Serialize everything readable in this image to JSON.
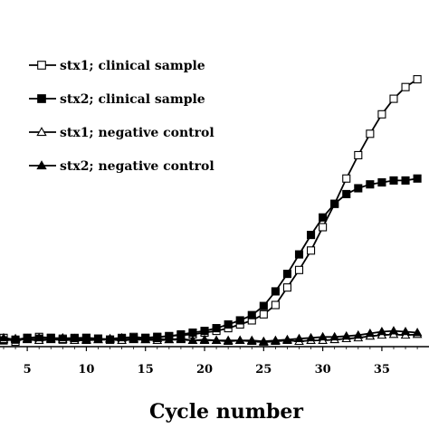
{
  "chart_data": {
    "type": "line",
    "title": "",
    "xlabel": "Cycle number",
    "ylabel": "",
    "xlim": [
      3,
      38.5
    ],
    "ylim": [
      0,
      1.6
    ],
    "xticks": [
      5,
      10,
      15,
      20,
      25,
      30,
      35
    ],
    "grid": false,
    "legend_position": "top-left",
    "series": [
      {
        "name": "stx1; clinical sample",
        "marker": "square-open",
        "color": "#000000",
        "x": [
          3,
          4,
          5,
          6,
          7,
          8,
          9,
          10,
          11,
          12,
          13,
          14,
          15,
          16,
          17,
          18,
          19,
          20,
          21,
          22,
          23,
          24,
          25,
          26,
          27,
          28,
          29,
          30,
          31,
          32,
          33,
          34,
          35,
          36,
          37,
          38
        ],
        "y": [
          0.031,
          0.011,
          0.031,
          0.036,
          0.031,
          0.027,
          0.031,
          0.031,
          0.027,
          0.022,
          0.031,
          0.036,
          0.031,
          0.036,
          0.04,
          0.045,
          0.049,
          0.058,
          0.067,
          0.081,
          0.1,
          0.121,
          0.152,
          0.2,
          0.29,
          0.38,
          0.48,
          0.6,
          0.72,
          0.85,
          0.97,
          1.08,
          1.18,
          1.26,
          1.32,
          1.36
        ]
      },
      {
        "name": "stx2; clinical sample",
        "marker": "square-filled",
        "color": "#000000",
        "x": [
          3,
          4,
          5,
          6,
          7,
          8,
          9,
          10,
          11,
          12,
          13,
          14,
          15,
          16,
          17,
          18,
          19,
          20,
          21,
          22,
          23,
          24,
          25,
          26,
          27,
          28,
          29,
          30,
          31,
          32,
          33,
          34,
          35,
          36,
          37,
          38
        ],
        "y": [
          0.018,
          0.022,
          0.031,
          0.027,
          0.031,
          0.022,
          0.027,
          0.031,
          0.027,
          0.022,
          0.027,
          0.031,
          0.031,
          0.036,
          0.04,
          0.049,
          0.058,
          0.067,
          0.081,
          0.1,
          0.121,
          0.148,
          0.195,
          0.27,
          0.36,
          0.46,
          0.56,
          0.65,
          0.72,
          0.77,
          0.8,
          0.82,
          0.83,
          0.84,
          0.84,
          0.85
        ]
      },
      {
        "name": "stx1; negative control",
        "marker": "triangle-open",
        "color": "#000000",
        "x": [
          3,
          4,
          5,
          6,
          7,
          8,
          9,
          10,
          11,
          12,
          13,
          14,
          15,
          16,
          17,
          18,
          19,
          20,
          21,
          22,
          23,
          24,
          25,
          26,
          27,
          28,
          29,
          30,
          31,
          32,
          33,
          34,
          35,
          36,
          37,
          38
        ],
        "y": [
          0.022,
          0.027,
          0.022,
          0.018,
          0.022,
          0.022,
          0.018,
          0.018,
          0.022,
          0.022,
          0.018,
          0.022,
          0.022,
          0.018,
          0.022,
          0.022,
          0.018,
          0.018,
          0.018,
          0.018,
          0.018,
          0.013,
          0.009,
          0.013,
          0.018,
          0.013,
          0.018,
          0.018,
          0.022,
          0.027,
          0.031,
          0.04,
          0.045,
          0.049,
          0.045,
          0.049
        ]
      },
      {
        "name": "stx2; negative control",
        "marker": "triangle-filled",
        "color": "#000000",
        "x": [
          3,
          4,
          5,
          6,
          7,
          8,
          9,
          10,
          11,
          12,
          13,
          14,
          15,
          16,
          17,
          18,
          19,
          20,
          21,
          22,
          23,
          24,
          25,
          26,
          27,
          28,
          29,
          30,
          31,
          32,
          33,
          34,
          35,
          36,
          37,
          38
        ],
        "y": [
          0.031,
          0.022,
          0.027,
          0.031,
          0.027,
          0.031,
          0.027,
          0.022,
          0.022,
          0.027,
          0.031,
          0.027,
          0.022,
          0.027,
          0.022,
          0.027,
          0.018,
          0.022,
          0.018,
          0.013,
          0.018,
          0.018,
          0.013,
          0.018,
          0.022,
          0.027,
          0.031,
          0.036,
          0.036,
          0.04,
          0.045,
          0.054,
          0.063,
          0.067,
          0.063,
          0.058
        ]
      }
    ]
  }
}
